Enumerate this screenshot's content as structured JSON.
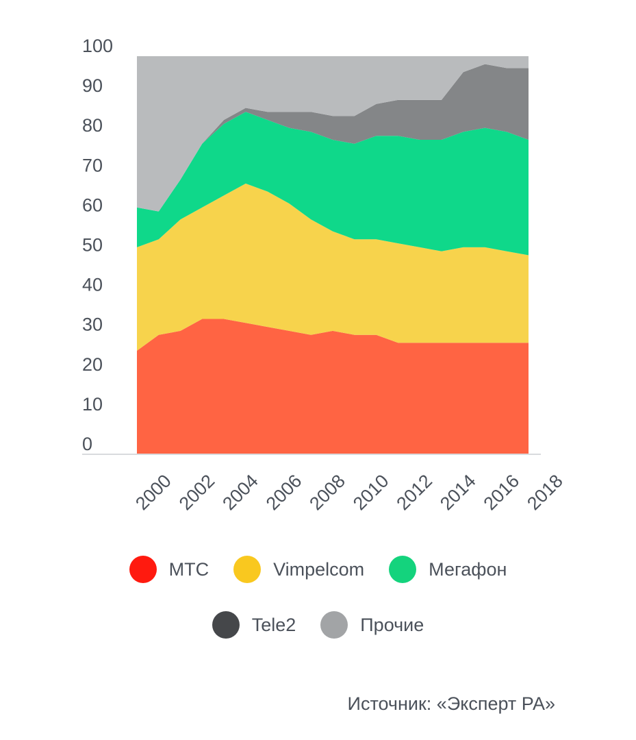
{
  "chart_data": {
    "type": "area",
    "stacked": true,
    "x": [
      2000,
      2001,
      2002,
      2003,
      2004,
      2005,
      2006,
      2007,
      2008,
      2009,
      2010,
      2011,
      2012,
      2013,
      2014,
      2015,
      2016,
      2017,
      2018
    ],
    "xticks": [
      "2000",
      "2002",
      "2004",
      "2006",
      "2008",
      "2010",
      "2012",
      "2014",
      "2016",
      "2018"
    ],
    "yticks": [
      "0",
      "10",
      "20",
      "30",
      "40",
      "50",
      "60",
      "70",
      "80",
      "90",
      "100"
    ],
    "ylim": [
      0,
      100
    ],
    "title": "",
    "xlabel": "",
    "ylabel": "",
    "legend_position": "bottom",
    "series": [
      {
        "name": "МТС",
        "color": "#ff6443",
        "legend_color": "#ff1a0f",
        "values": [
          26,
          30,
          31,
          34,
          34,
          33,
          32,
          31,
          30,
          31,
          30,
          30,
          28,
          28,
          28,
          28,
          28,
          28,
          28
        ]
      },
      {
        "name": "Vimpelcom",
        "color": "#f7d34c",
        "legend_color": "#f9c81f",
        "values": [
          26,
          24,
          28,
          28,
          31,
          35,
          34,
          32,
          29,
          25,
          24,
          24,
          25,
          24,
          23,
          24,
          24,
          23,
          22
        ]
      },
      {
        "name": "Мегафон",
        "color": "#0fd88a",
        "legend_color": "#14d37d",
        "values": [
          10,
          7,
          10,
          16,
          18,
          18,
          18,
          19,
          22,
          23,
          24,
          26,
          27,
          27,
          28,
          29,
          30,
          30,
          29
        ]
      },
      {
        "name": "Tele2",
        "color": "#848688",
        "legend_color": "#45474a",
        "values": [
          0,
          0,
          0,
          0,
          1,
          1,
          2,
          4,
          5,
          6,
          7,
          8,
          9,
          10,
          10,
          15,
          16,
          16,
          18
        ]
      },
      {
        "name": "Прочие",
        "color": "#b9bbbd",
        "legend_color": "#a2a4a6",
        "values": [
          38,
          39,
          31,
          22,
          16,
          13,
          14,
          14,
          14,
          15,
          15,
          12,
          11,
          11,
          11,
          4,
          2,
          3,
          3
        ]
      }
    ]
  },
  "source": "Источник: «Эксперт РА»"
}
